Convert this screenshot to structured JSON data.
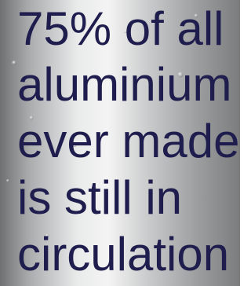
{
  "lines": [
    "75% of all",
    "aluminium",
    "ever made",
    "is still in",
    "circulation"
  ]
}
